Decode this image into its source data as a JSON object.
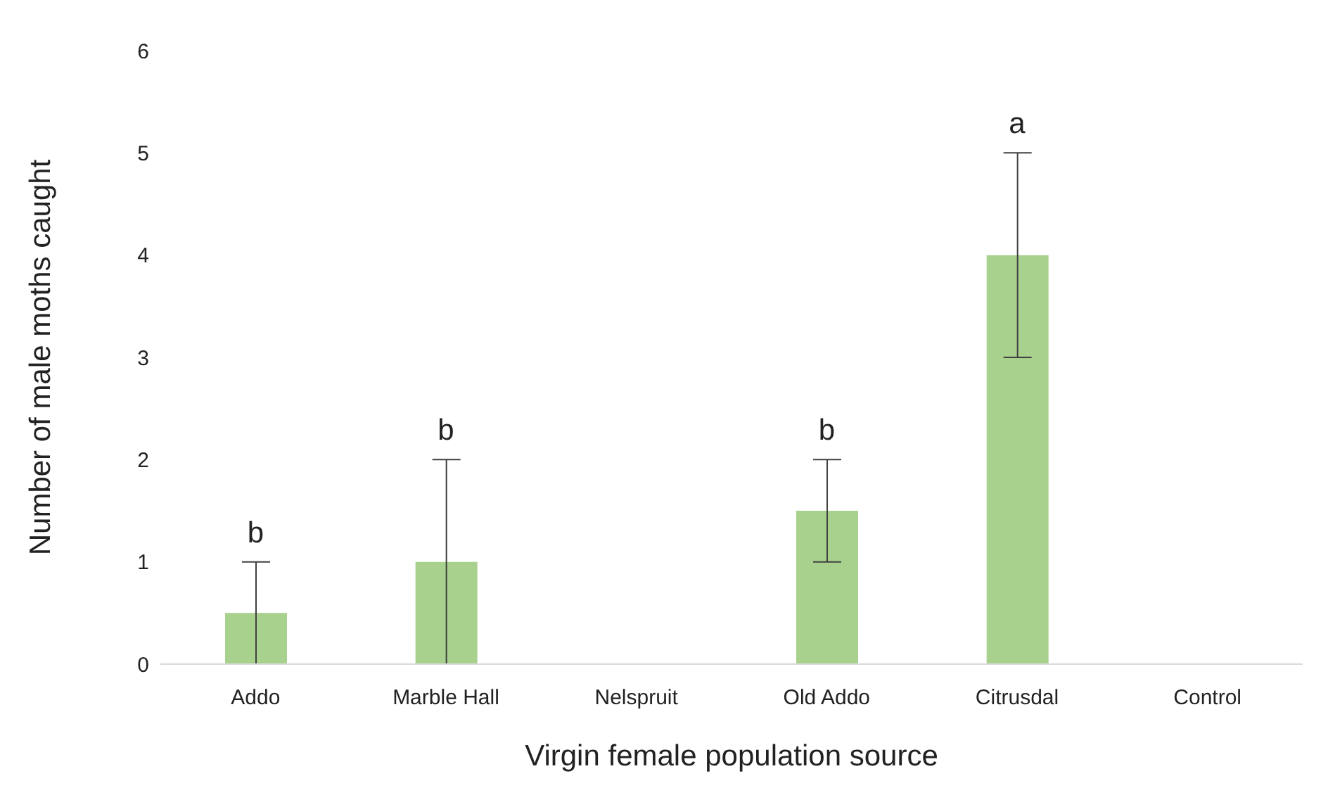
{
  "chart_data": {
    "type": "bar",
    "xlabel": "Virgin female population source",
    "ylabel": "Number of male moths caught",
    "categories": [
      "Addo",
      "Marble Hall",
      "Nelspruit",
      "Old Addo",
      "Citrusdal",
      "Control"
    ],
    "values": [
      0.5,
      1,
      0,
      1.5,
      4,
      0
    ],
    "errors": [
      0.5,
      1,
      null,
      0.5,
      1,
      null
    ],
    "color": "#a9d18e",
    "ylim": [
      0,
      6
    ],
    "yticks": [
      0,
      1,
      2,
      3,
      4,
      5,
      6
    ],
    "grid": false,
    "annotations": [
      {
        "text": "b",
        "x": "Addo",
        "y": 1
      },
      {
        "text": "b",
        "x": "Marble Hall",
        "y": 2
      },
      {
        "text": "b",
        "x": "Old Addo",
        "y": 2
      },
      {
        "text": "a",
        "x": "Citrusdal",
        "y": 5
      }
    ]
  }
}
